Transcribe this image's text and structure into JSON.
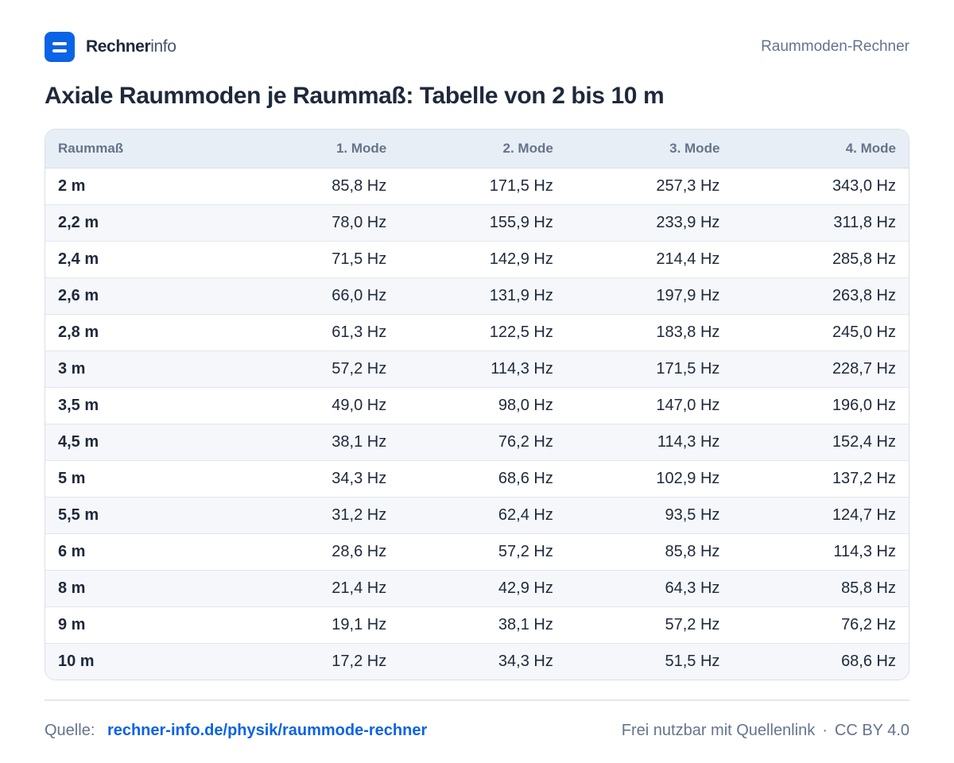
{
  "header": {
    "brand_bold": "Rechner",
    "brand_light": "info",
    "right_label": "Raummoden-Rechner"
  },
  "title": "Axiale Raummoden je Raummaß: Tabelle von 2 bis 10 m",
  "table": {
    "columns": [
      "Raummaß",
      "1. Mode",
      "2. Mode",
      "3. Mode",
      "4. Mode"
    ],
    "rows": [
      [
        "2 m",
        "85,8 Hz",
        "171,5 Hz",
        "257,3 Hz",
        "343,0 Hz"
      ],
      [
        "2,2 m",
        "78,0 Hz",
        "155,9 Hz",
        "233,9 Hz",
        "311,8 Hz"
      ],
      [
        "2,4 m",
        "71,5 Hz",
        "142,9 Hz",
        "214,4 Hz",
        "285,8 Hz"
      ],
      [
        "2,6 m",
        "66,0 Hz",
        "131,9 Hz",
        "197,9 Hz",
        "263,8 Hz"
      ],
      [
        "2,8 m",
        "61,3 Hz",
        "122,5 Hz",
        "183,8 Hz",
        "245,0 Hz"
      ],
      [
        "3 m",
        "57,2 Hz",
        "114,3 Hz",
        "171,5 Hz",
        "228,7 Hz"
      ],
      [
        "3,5 m",
        "49,0 Hz",
        "98,0 Hz",
        "147,0 Hz",
        "196,0 Hz"
      ],
      [
        "4,5 m",
        "38,1 Hz",
        "76,2 Hz",
        "114,3 Hz",
        "152,4 Hz"
      ],
      [
        "5 m",
        "34,3 Hz",
        "68,6 Hz",
        "102,9 Hz",
        "137,2 Hz"
      ],
      [
        "5,5 m",
        "31,2 Hz",
        "62,4 Hz",
        "93,5 Hz",
        "124,7 Hz"
      ],
      [
        "6 m",
        "28,6 Hz",
        "57,2 Hz",
        "85,8 Hz",
        "114,3 Hz"
      ],
      [
        "8 m",
        "21,4 Hz",
        "42,9 Hz",
        "64,3 Hz",
        "85,8 Hz"
      ],
      [
        "9 m",
        "19,1 Hz",
        "38,1 Hz",
        "57,2 Hz",
        "76,2 Hz"
      ],
      [
        "10 m",
        "17,2 Hz",
        "34,3 Hz",
        "51,5 Hz",
        "68,6 Hz"
      ]
    ]
  },
  "footer": {
    "source_label": "Quelle:",
    "source_link": "rechner-info.de/physik/raummode-rechner",
    "license_note": "Frei nutzbar mit Quellenlink",
    "separator": "·",
    "license": "CC BY 4.0"
  },
  "colors": {
    "accent": "#0b63e5",
    "text": "#1e293b",
    "muted": "#64748b",
    "header_bg": "#e8eef5",
    "row_alt_bg": "#f5f7fa"
  },
  "icons": {
    "logo": "rechnerinfo-logo-icon"
  }
}
